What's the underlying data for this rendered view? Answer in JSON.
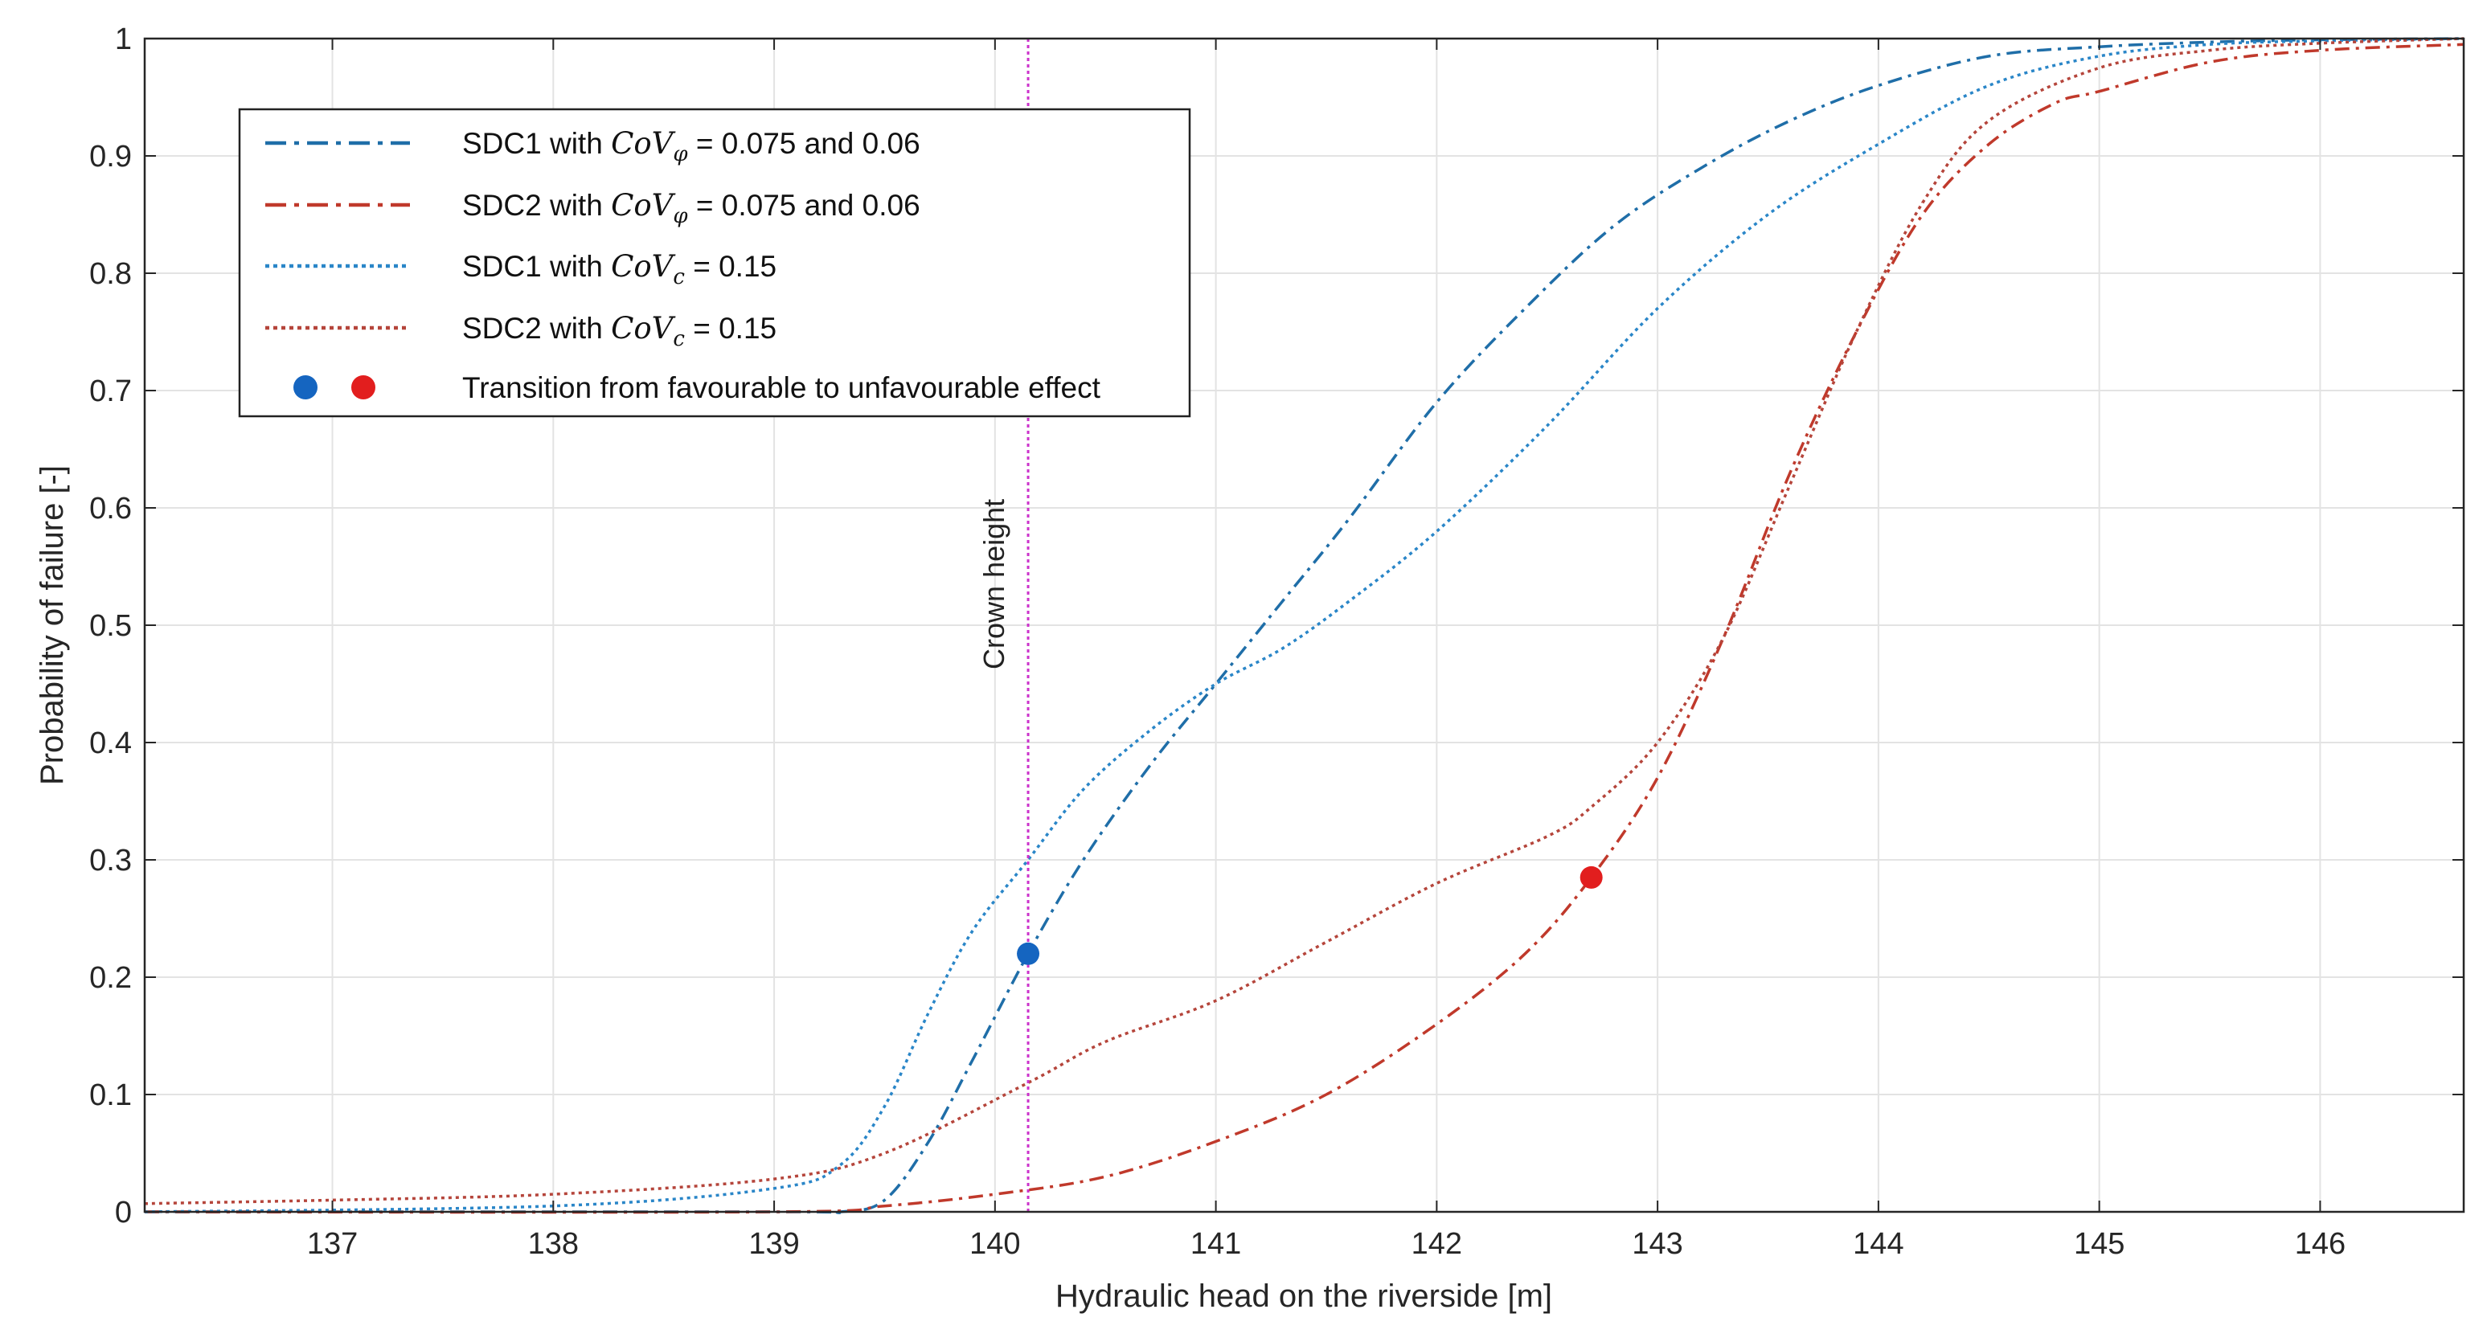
{
  "chart_data": {
    "type": "line",
    "xlabel": "Hydraulic head on the riverside [m]",
    "ylabel": "Probability of failure [-]",
    "xlim": [
      136.15,
      146.65
    ],
    "ylim": [
      0,
      1
    ],
    "xticks": [
      137,
      138,
      139,
      140,
      141,
      142,
      143,
      144,
      145,
      146
    ],
    "xtick_labels": [
      "137",
      "138",
      "139",
      "140",
      "141",
      "142",
      "143",
      "144",
      "145",
      "146"
    ],
    "yticks": [
      0,
      0.1,
      0.2,
      0.3,
      0.4,
      0.5,
      0.6,
      0.7,
      0.8,
      0.9,
      1
    ],
    "ytick_labels": [
      "0",
      "0.1",
      "0.2",
      "0.3",
      "0.4",
      "0.5",
      "0.6",
      "0.7",
      "0.8",
      "0.9",
      "1"
    ],
    "grid": true,
    "legend_position": "top-left",
    "series": [
      {
        "legend_label": "SDC1 with CoV_φ = 0.075 and 0.06",
        "legend_parts": {
          "prefix": "SDC1 with ",
          "var": "CoV",
          "sub": "φ",
          "suffix": " = 0.075 and 0.06"
        },
        "style": "dashdot",
        "color": "#1f6ea8",
        "x": [
          136.15,
          139.0,
          139.3,
          139.5,
          139.7,
          139.9,
          140.15,
          140.4,
          140.7,
          141.0,
          141.3,
          141.6,
          142.0,
          142.4,
          142.8,
          143.2,
          143.6,
          144.0,
          144.5,
          145.0,
          145.5,
          146.0,
          146.65
        ],
        "y": [
          0.0,
          0.0,
          0.0,
          0.01,
          0.06,
          0.13,
          0.22,
          0.3,
          0.38,
          0.45,
          0.52,
          0.59,
          0.69,
          0.77,
          0.84,
          0.89,
          0.93,
          0.96,
          0.985,
          0.993,
          0.997,
          0.999,
          1.0
        ]
      },
      {
        "legend_label": "SDC2 with CoV_φ = 0.075 and 0.06",
        "legend_parts": {
          "prefix": "SDC2 with ",
          "var": "CoV",
          "sub": "φ",
          "suffix": " = 0.075 and 0.06"
        },
        "style": "dashdot",
        "color": "#c0392b",
        "x": [
          136.15,
          139.0,
          139.5,
          140.0,
          140.5,
          141.0,
          141.5,
          142.0,
          142.4,
          142.7,
          143.0,
          143.3,
          143.6,
          143.9,
          144.2,
          144.5,
          144.8,
          145.0,
          145.5,
          146.0,
          146.65
        ],
        "y": [
          0.0,
          0.0,
          0.005,
          0.015,
          0.03,
          0.06,
          0.1,
          0.16,
          0.22,
          0.285,
          0.37,
          0.49,
          0.63,
          0.75,
          0.85,
          0.91,
          0.945,
          0.955,
          0.98,
          0.99,
          0.995
        ]
      },
      {
        "legend_label": "SDC1 with CoV_c = 0.15",
        "legend_parts": {
          "prefix": "SDC1 with ",
          "var": "CoV",
          "sub": "c",
          "suffix": " = 0.15"
        },
        "style": "dotted",
        "color": "#2a86c8",
        "x": [
          136.15,
          138.0,
          139.0,
          139.3,
          139.5,
          139.7,
          139.9,
          140.15,
          140.4,
          140.7,
          141.0,
          141.3,
          141.6,
          142.0,
          142.5,
          143.0,
          143.5,
          144.0,
          144.5,
          145.0,
          145.5,
          146.0,
          146.65
        ],
        "y": [
          0.0,
          0.005,
          0.02,
          0.04,
          0.09,
          0.17,
          0.24,
          0.3,
          0.36,
          0.41,
          0.45,
          0.48,
          0.52,
          0.58,
          0.67,
          0.77,
          0.85,
          0.91,
          0.96,
          0.985,
          0.995,
          0.998,
          1.0
        ]
      },
      {
        "legend_label": "SDC2 with CoV_c = 0.15",
        "legend_parts": {
          "prefix": "SDC2 with ",
          "var": "CoV",
          "sub": "c",
          "suffix": " = 0.15"
        },
        "style": "dotted",
        "color": "#b5453b",
        "x": [
          136.15,
          137.0,
          138.0,
          139.0,
          139.5,
          140.15,
          140.5,
          141.0,
          141.5,
          142.0,
          142.5,
          142.7,
          143.0,
          143.3,
          143.6,
          143.9,
          144.2,
          144.5,
          145.0,
          145.5,
          146.0,
          146.65
        ],
        "y": [
          0.007,
          0.01,
          0.015,
          0.028,
          0.05,
          0.11,
          0.145,
          0.18,
          0.23,
          0.28,
          0.32,
          0.345,
          0.4,
          0.49,
          0.62,
          0.75,
          0.86,
          0.93,
          0.975,
          0.99,
          0.996,
          1.0
        ]
      }
    ],
    "markers": [
      {
        "x": 140.15,
        "y": 0.22,
        "color": "#1565c0"
      },
      {
        "x": 142.7,
        "y": 0.285,
        "color": "#e21e1e"
      }
    ],
    "marker_legend_label": "Transition from favourable to unfavourable effect",
    "vline": {
      "x": 140.15,
      "label": "Crown height",
      "color": "#cc33cc"
    }
  }
}
